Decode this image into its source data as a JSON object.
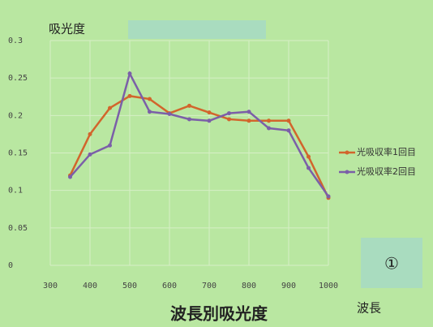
{
  "chart_data": {
    "type": "line",
    "title": "波長別吸光度",
    "y_label": "吸光度",
    "x_label": "波長",
    "annotation": "①",
    "x": [
      350,
      400,
      450,
      500,
      550,
      600,
      650,
      700,
      750,
      800,
      850,
      900,
      950,
      1000
    ],
    "series": [
      {
        "name": "光吸収率1回目",
        "color": "#d2652c",
        "values": [
          0.12,
          0.175,
          0.21,
          0.226,
          0.222,
          0.203,
          0.213,
          0.204,
          0.195,
          0.193,
          0.193,
          0.193,
          0.145,
          0.09
        ]
      },
      {
        "name": "光吸収率2回目",
        "color": "#7b5fa8",
        "values": [
          0.118,
          0.148,
          0.16,
          0.256,
          0.205,
          0.202,
          0.195,
          0.193,
          0.203,
          0.205,
          0.183,
          0.18,
          0.13,
          0.092
        ]
      }
    ],
    "xlim": [
      300,
      1000
    ],
    "xticks": [
      300,
      400,
      500,
      600,
      700,
      800,
      900,
      1000
    ],
    "ylim": [
      0,
      0.3
    ],
    "yticks": [
      0,
      0.05,
      0.1,
      0.15,
      0.2,
      0.25,
      0.3
    ],
    "grid": true
  }
}
